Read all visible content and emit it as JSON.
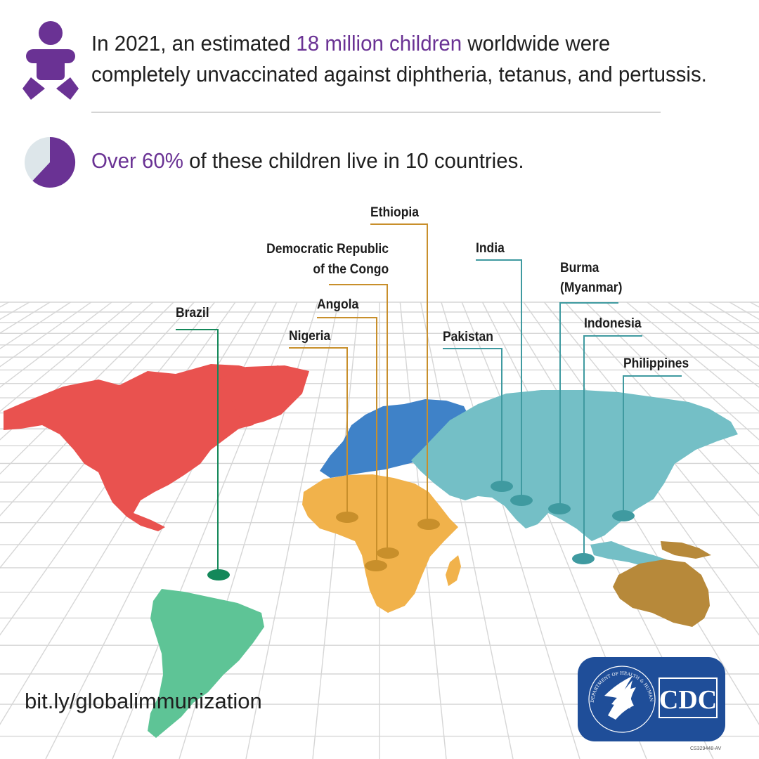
{
  "headline": {
    "prefix": "In 2021, an estimated ",
    "highlight": "18 million children",
    "suffix": " worldwide were completely unvaccinated against diphtheria, tetanus, and pertussis."
  },
  "stat": {
    "highlight": "Over 60%",
    "suffix": " of these children live in 10 countries.",
    "pie_fraction": 0.62
  },
  "map": {
    "countries": [
      {
        "name": "Ethiopia"
      },
      {
        "name": "Democratic Republic",
        "name2": "of the Congo"
      },
      {
        "name": "India"
      },
      {
        "name": "Burma",
        "name2": "(Myanmar)"
      },
      {
        "name": "Angola"
      },
      {
        "name": "Brazil"
      },
      {
        "name": "Indonesia"
      },
      {
        "name": "Nigeria"
      },
      {
        "name": "Pakistan"
      },
      {
        "name": "Philippines"
      }
    ],
    "colors": {
      "north_america": "#e9524f",
      "south_america": "#5ec496",
      "europe": "#3f82c8",
      "africa": "#f1b24b",
      "asia": "#74bfc6",
      "oceania": "#b7893a",
      "africa_marker": "#c88f2b",
      "asia_marker": "#3f9aa0",
      "brazil_marker": "#14885a"
    }
  },
  "footer": {
    "url": "bit.ly/globalimmunization",
    "logo_text": "CDC",
    "seal_text": "DEPARTMENT OF HEALTH & HUMAN SERVICES USA",
    "code": "CS329448-AV"
  }
}
